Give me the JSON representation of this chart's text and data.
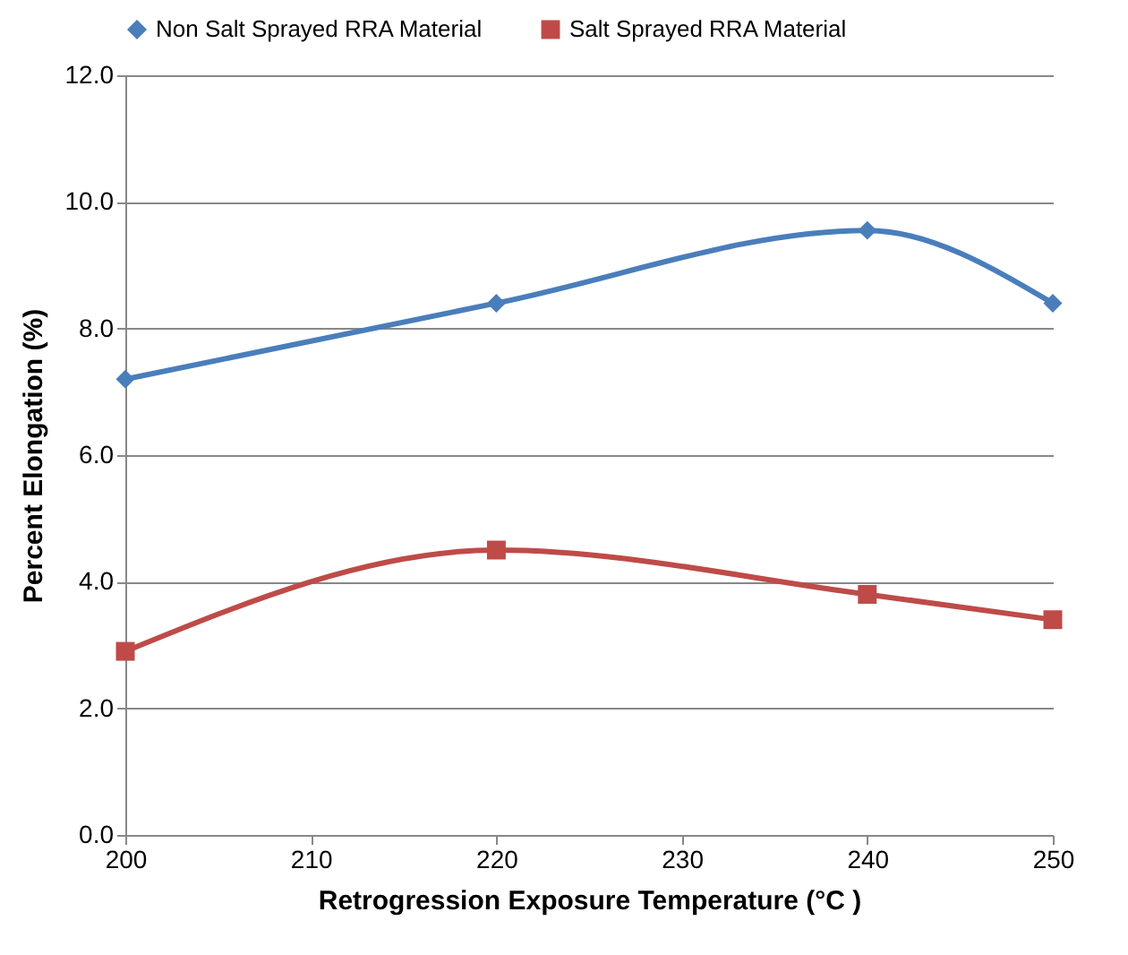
{
  "chart_data": {
    "type": "line",
    "xlabel": "Retrogression Exposure Temperature (°C )",
    "ylabel": "Percent Elongation (%)",
    "x": [
      200,
      220,
      240,
      250
    ],
    "series": [
      {
        "name": "Non Salt Sprayed RRA Material",
        "color": "#4a7ebb",
        "marker": "diamond",
        "values": [
          7.2,
          8.4,
          9.55,
          8.4
        ]
      },
      {
        "name": "Salt Sprayed RRA Material",
        "color": "#be4b48",
        "marker": "square",
        "values": [
          2.9,
          4.5,
          3.8,
          3.4
        ]
      }
    ],
    "xlim": [
      200,
      250
    ],
    "xticks": [
      200,
      210,
      220,
      230,
      240,
      250
    ],
    "ylim": [
      0,
      12
    ],
    "yticks": [
      {
        "value": 0,
        "label": "0.0"
      },
      {
        "value": 2,
        "label": "2.0"
      },
      {
        "value": 4,
        "label": "4.0"
      },
      {
        "value": 6,
        "label": "6.0"
      },
      {
        "value": 8,
        "label": "8.0"
      },
      {
        "value": 10,
        "label": "10.0"
      },
      {
        "value": 12,
        "label": "12.0"
      }
    ],
    "grid": "y",
    "legend": "top",
    "line_style": "solid"
  }
}
